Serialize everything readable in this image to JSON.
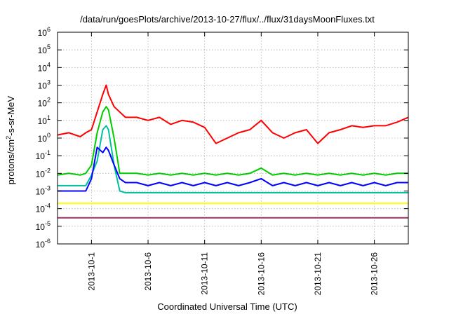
{
  "chart_data": {
    "type": "line",
    "title": "/data/run/goesPlots/archive/2013-10-27/flux/../flux/31daysMoonFluxes.txt",
    "xlabel": "Coordinated Universal Time (UTC)",
    "ylabel_parts": [
      "protons/cm",
      "2",
      "-s-sr-MeV"
    ],
    "y_scale": "log",
    "ylim": [
      1e-06,
      1000000.0
    ],
    "xlim_days_from_oct1": [
      -3,
      28
    ],
    "x_ticks": [
      {
        "label": "2013-10-1",
        "day": 0
      },
      {
        "label": "2013-10-6",
        "day": 5
      },
      {
        "label": "2013-10-11",
        "day": 10
      },
      {
        "label": "2013-10-16",
        "day": 15
      },
      {
        "label": "2013-10-21",
        "day": 20
      },
      {
        "label": "2013-10-26",
        "day": 25
      }
    ],
    "y_ticks": [
      {
        "exp": -6,
        "label": "10",
        "sup": "-6"
      },
      {
        "exp": -5,
        "label": "10",
        "sup": "-5"
      },
      {
        "exp": -4,
        "label": "10",
        "sup": "-4"
      },
      {
        "exp": -3,
        "label": "10",
        "sup": "-3"
      },
      {
        "exp": -2,
        "label": "10",
        "sup": "-2"
      },
      {
        "exp": -1,
        "label": "10",
        "sup": "-1"
      },
      {
        "exp": 0,
        "label": "10",
        "sup": "0"
      },
      {
        "exp": 1,
        "label": "10",
        "sup": "1"
      },
      {
        "exp": 2,
        "label": "10",
        "sup": "2"
      },
      {
        "exp": 3,
        "label": "10",
        "sup": "3"
      },
      {
        "exp": 4,
        "label": "10",
        "sup": "4"
      },
      {
        "exp": 5,
        "label": "10",
        "sup": "5"
      },
      {
        "exp": 6,
        "label": "10",
        "sup": "6"
      }
    ],
    "grid": true,
    "series": [
      {
        "color": "#ff0000",
        "x": [
          -3,
          -2,
          -1,
          -0.5,
          0,
          0.5,
          1,
          1.3,
          1.5,
          2,
          2.5,
          3,
          4,
          5,
          6,
          7,
          8,
          9,
          10,
          11,
          12,
          13,
          14,
          15,
          16,
          17,
          18,
          19,
          20,
          21,
          22,
          23,
          24,
          25,
          26,
          27,
          28
        ],
        "y": [
          1.5,
          2,
          1.2,
          2,
          3,
          30,
          300,
          1000,
          300,
          60,
          30,
          15,
          15,
          10,
          15,
          6,
          10,
          8,
          4,
          0.5,
          1,
          2,
          3,
          10,
          2,
          1,
          2,
          3,
          0.5,
          2,
          3,
          5,
          4,
          5,
          5,
          8,
          15
        ]
      },
      {
        "color": "#00cc00",
        "x": [
          -3,
          -2,
          -1,
          -0.5,
          0,
          0.5,
          1,
          1.3,
          1.5,
          2,
          2.5,
          3,
          4,
          5,
          6,
          7,
          8,
          9,
          10,
          11,
          12,
          13,
          14,
          15,
          16,
          17,
          18,
          19,
          20,
          21,
          22,
          23,
          24,
          25,
          26,
          27,
          28
        ],
        "y": [
          0.008,
          0.01,
          0.008,
          0.01,
          0.03,
          2,
          30,
          60,
          40,
          1,
          0.01,
          0.01,
          0.01,
          0.008,
          0.01,
          0.008,
          0.01,
          0.008,
          0.01,
          0.008,
          0.01,
          0.008,
          0.01,
          0.02,
          0.008,
          0.01,
          0.008,
          0.01,
          0.008,
          0.01,
          0.008,
          0.01,
          0.008,
          0.01,
          0.008,
          0.01,
          0.01
        ]
      },
      {
        "color": "#00c0a0",
        "x": [
          -3,
          -2,
          -1,
          -0.5,
          0,
          0.5,
          1,
          1.3,
          1.5,
          2,
          2.5,
          3,
          4,
          5,
          6,
          7,
          8,
          9,
          10,
          11,
          12,
          13,
          14,
          15,
          16,
          17,
          18,
          19,
          20,
          21,
          22,
          23,
          24,
          25,
          26,
          27,
          28
        ],
        "y": [
          0.002,
          0.002,
          0.002,
          0.002,
          0.008,
          0.05,
          3,
          5,
          3,
          0.03,
          0.001,
          0.0008,
          0.0008,
          0.0008,
          0.0008,
          0.0008,
          0.0008,
          0.0008,
          0.0008,
          0.0008,
          0.0008,
          0.0008,
          0.0008,
          0.0008,
          0.0008,
          0.0008,
          0.0008,
          0.0008,
          0.0008,
          0.0008,
          0.0008,
          0.0008,
          0.0008,
          0.0008,
          0.0008,
          0.0008,
          0.0008
        ]
      },
      {
        "color": "#0000ff",
        "x": [
          -3,
          -2,
          -1,
          -0.5,
          0,
          0.5,
          1,
          1.3,
          1.5,
          2,
          2.5,
          3,
          4,
          5,
          6,
          7,
          8,
          9,
          10,
          11,
          12,
          13,
          14,
          15,
          16,
          17,
          18,
          19,
          20,
          21,
          22,
          23,
          24,
          25,
          26,
          27,
          28
        ],
        "y": [
          0.001,
          0.001,
          0.001,
          0.001,
          0.005,
          0.3,
          0.15,
          0.3,
          0.2,
          0.03,
          0.005,
          0.003,
          0.003,
          0.002,
          0.003,
          0.002,
          0.003,
          0.002,
          0.003,
          0.002,
          0.003,
          0.002,
          0.003,
          0.005,
          0.002,
          0.003,
          0.002,
          0.003,
          0.002,
          0.003,
          0.002,
          0.003,
          0.002,
          0.003,
          0.002,
          0.003,
          0.003
        ]
      },
      {
        "color": "#ffff00",
        "x": [
          -3,
          -2,
          -1,
          0,
          1,
          2,
          3,
          4,
          5,
          6,
          7,
          8,
          9,
          10,
          11,
          12,
          13,
          14,
          15,
          16,
          17,
          18,
          19,
          20,
          21,
          22,
          23,
          24,
          25,
          26,
          27,
          28
        ],
        "y": [
          0.0002,
          0.0002,
          0.0002,
          0.0002,
          0.0002,
          0.0002,
          0.0002,
          0.0002,
          0.0002,
          0.0002,
          0.0002,
          0.0002,
          0.0002,
          0.0002,
          0.0002,
          0.0002,
          0.0002,
          0.0002,
          0.0002,
          0.0002,
          0.0002,
          0.0002,
          0.0002,
          0.0002,
          0.0002,
          0.0002,
          0.0002,
          0.0002,
          0.0002,
          0.0002,
          0.0002,
          0.0002
        ]
      },
      {
        "color": "#993366",
        "x": [
          -3,
          -2,
          -1,
          0,
          1,
          2,
          3,
          4,
          5,
          6,
          7,
          8,
          9,
          10,
          11,
          12,
          13,
          14,
          15,
          16,
          17,
          18,
          19,
          20,
          21,
          22,
          23,
          24,
          25,
          26,
          27,
          28
        ],
        "y": [
          3e-05,
          3e-05,
          3e-05,
          3e-05,
          3e-05,
          3e-05,
          3e-05,
          3e-05,
          3e-05,
          3e-05,
          3e-05,
          3e-05,
          3e-05,
          3e-05,
          3e-05,
          3e-05,
          3e-05,
          3e-05,
          3e-05,
          3e-05,
          3e-05,
          3e-05,
          3e-05,
          3e-05,
          3e-05,
          3e-05,
          3e-05,
          3e-05,
          3e-05,
          3e-05,
          3e-05,
          3e-05
        ]
      }
    ]
  }
}
